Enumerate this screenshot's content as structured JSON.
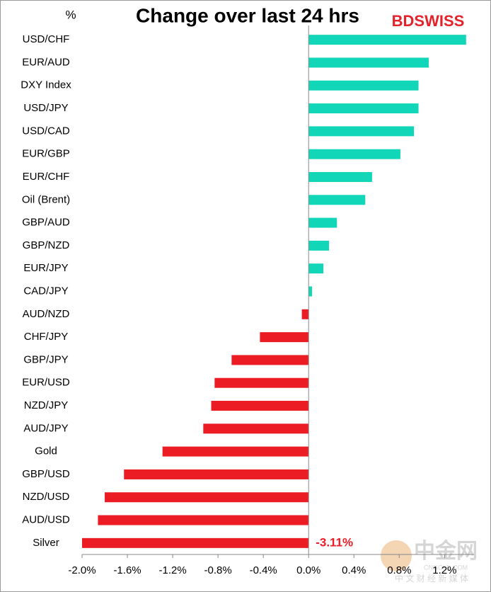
{
  "chart_data": {
    "type": "hbar",
    "title": "Change over last 24 hrs",
    "unit_label": "%",
    "brand": "BDSWISS",
    "watermark": {
      "name": "中金网",
      "site": "CNGOLD.COM",
      "tagline": "中 文 财 经 新 媒 体"
    },
    "categories": [
      "USD/CHF",
      "EUR/AUD",
      "DXY Index",
      "USD/JPY",
      "USD/CAD",
      "EUR/GBP",
      "EUR/CHF",
      "Oil (Brent)",
      "GBP/AUD",
      "GBP/NZD",
      "EUR/JPY",
      "CAD/JPY",
      "AUD/NZD",
      "CHF/JPY",
      "GBP/JPY",
      "EUR/USD",
      "NZD/JPY",
      "AUD/JPY",
      "Gold",
      "GBP/USD",
      "NZD/USD",
      "AUD/USD",
      "Silver"
    ],
    "values": [
      1.39,
      1.06,
      0.97,
      0.97,
      0.93,
      0.81,
      0.56,
      0.5,
      0.25,
      0.18,
      0.13,
      0.03,
      -0.06,
      -0.43,
      -0.68,
      -0.83,
      -0.86,
      -0.93,
      -1.29,
      -1.63,
      -1.8,
      -1.86,
      -3.11
    ],
    "value_labels": [
      null,
      null,
      null,
      null,
      null,
      null,
      null,
      null,
      null,
      null,
      null,
      null,
      null,
      null,
      null,
      null,
      null,
      null,
      null,
      null,
      null,
      null,
      "-3.11%"
    ],
    "positive_color": "#12d6b8",
    "negative_color": "#ec1c24",
    "xlim": [
      -2.0,
      1.46
    ],
    "xticks": [
      {
        "value": -2.0,
        "label": "-2.0%"
      },
      {
        "value": -1.6,
        "label": "-1.6%"
      },
      {
        "value": -1.2,
        "label": "-1.2%"
      },
      {
        "value": -0.8,
        "label": "-0.8%"
      },
      {
        "value": -0.4,
        "label": "-0.4%"
      },
      {
        "value": 0.0,
        "label": "0.0%"
      },
      {
        "value": 0.4,
        "label": "0.4%"
      },
      {
        "value": 0.8,
        "label": "0.8%"
      },
      {
        "value": 1.2,
        "label": "1.2%"
      }
    ]
  }
}
